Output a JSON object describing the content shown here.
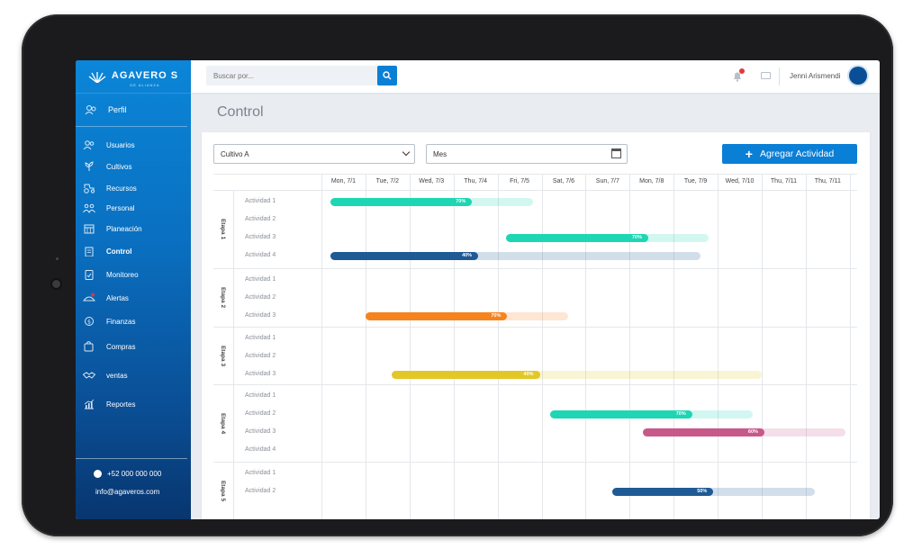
{
  "sidebar": {
    "brand": "AGAVERO S",
    "brand_sub": "DE ALIANZA",
    "profile": "Perfil",
    "items": [
      {
        "label": "Usuarios",
        "icon": "users-icon"
      },
      {
        "label": "Cultivos",
        "icon": "plant-icon"
      },
      {
        "label": "Recursos",
        "icon": "tractor-icon"
      },
      {
        "label": "Personal",
        "icon": "workers-icon"
      },
      {
        "label": "Planeación",
        "icon": "calendar-icon"
      },
      {
        "label": "Control",
        "icon": "clipboard-icon",
        "active": true
      },
      {
        "label": "Monitoreo",
        "icon": "monitor-icon"
      },
      {
        "label": "Alertas",
        "icon": "alert-icon"
      },
      {
        "label": "Finanzas",
        "icon": "money-icon"
      },
      {
        "label": "Compras",
        "icon": "cart-icon"
      },
      {
        "label": "ventas",
        "icon": "handshake-icon"
      },
      {
        "label": "Reportes",
        "icon": "report-icon"
      }
    ],
    "phone": "+52 000 000 000",
    "email": "info@agaveros.com"
  },
  "header": {
    "search_placeholder": "Buscar por...",
    "user_name": "Jenni Arismendi"
  },
  "page": {
    "title": "Control",
    "crop_select": "Cultivo A",
    "range_select": "Mes",
    "add_button": "Agregar Actividad"
  },
  "colors": {
    "accent": "#0a7fd6",
    "teal": "#1ed6b3",
    "navy": "#1f5a94",
    "orange": "#f5841f",
    "yellow": "#e3c727",
    "pink": "#c8588a"
  },
  "gantt": {
    "days": [
      "Mon, 7/1",
      "Tue, 7/2",
      "Wed, 7/3",
      "Thu, 7/4",
      "Fri, 7/5",
      "Sat, 7/6",
      "Sun, 7/7",
      "Mon, 7/8",
      "Tue, 7/9",
      "Wed, 7/10",
      "Thu, 7/11",
      "Thu, 7/11"
    ],
    "stages": [
      {
        "name": "Etapa 1",
        "activities": [
          "Actividad 1",
          "Actividad 2",
          "Actividad 3",
          "Actividad 4"
        ]
      },
      {
        "name": "Etapa 2",
        "activities": [
          "Actividad 1",
          "Actividad 2",
          "Actividad 3"
        ]
      },
      {
        "name": "Etapa 3",
        "activities": [
          "Actividad 1",
          "Actividad 2",
          "Actividad 3"
        ]
      },
      {
        "name": "Etapa 4",
        "activities": [
          "Actividad 1",
          "Actividad 2",
          "Actividad 3",
          "Actividad 4"
        ]
      },
      {
        "name": "Etapa 5",
        "activities": [
          "Actividad 1",
          "Actividad 2"
        ]
      }
    ],
    "tasks": [
      {
        "stage": 0,
        "activity": 0,
        "start_day": 0.2,
        "end_day": 4.8,
        "progress": 70,
        "label": "70%",
        "color": "#1ed6b3"
      },
      {
        "stage": 0,
        "activity": 2,
        "start_day": 4.2,
        "end_day": 8.8,
        "progress": 70,
        "label": "70%",
        "color": "#1ed6b3"
      },
      {
        "stage": 0,
        "activity": 3,
        "start_day": 0.2,
        "end_day": 8.6,
        "progress": 40,
        "label": "40%",
        "color": "#1f5a94"
      },
      {
        "stage": 1,
        "activity": 2,
        "start_day": 1.0,
        "end_day": 5.6,
        "progress": 70,
        "label": "70%",
        "color": "#f5841f"
      },
      {
        "stage": 2,
        "activity": 2,
        "start_day": 1.6,
        "end_day": 10.0,
        "progress": 40,
        "label": "40%",
        "color": "#e3c727"
      },
      {
        "stage": 3,
        "activity": 1,
        "start_day": 5.2,
        "end_day": 9.8,
        "progress": 70,
        "label": "70%",
        "color": "#1ed6b3"
      },
      {
        "stage": 3,
        "activity": 2,
        "start_day": 7.3,
        "end_day": 11.9,
        "progress": 60,
        "label": "60%",
        "color": "#c8588a"
      },
      {
        "stage": 4,
        "activity": 1,
        "start_day": 6.6,
        "end_day": 11.2,
        "progress": 50,
        "label": "50%",
        "color": "#1f5a94"
      }
    ]
  }
}
